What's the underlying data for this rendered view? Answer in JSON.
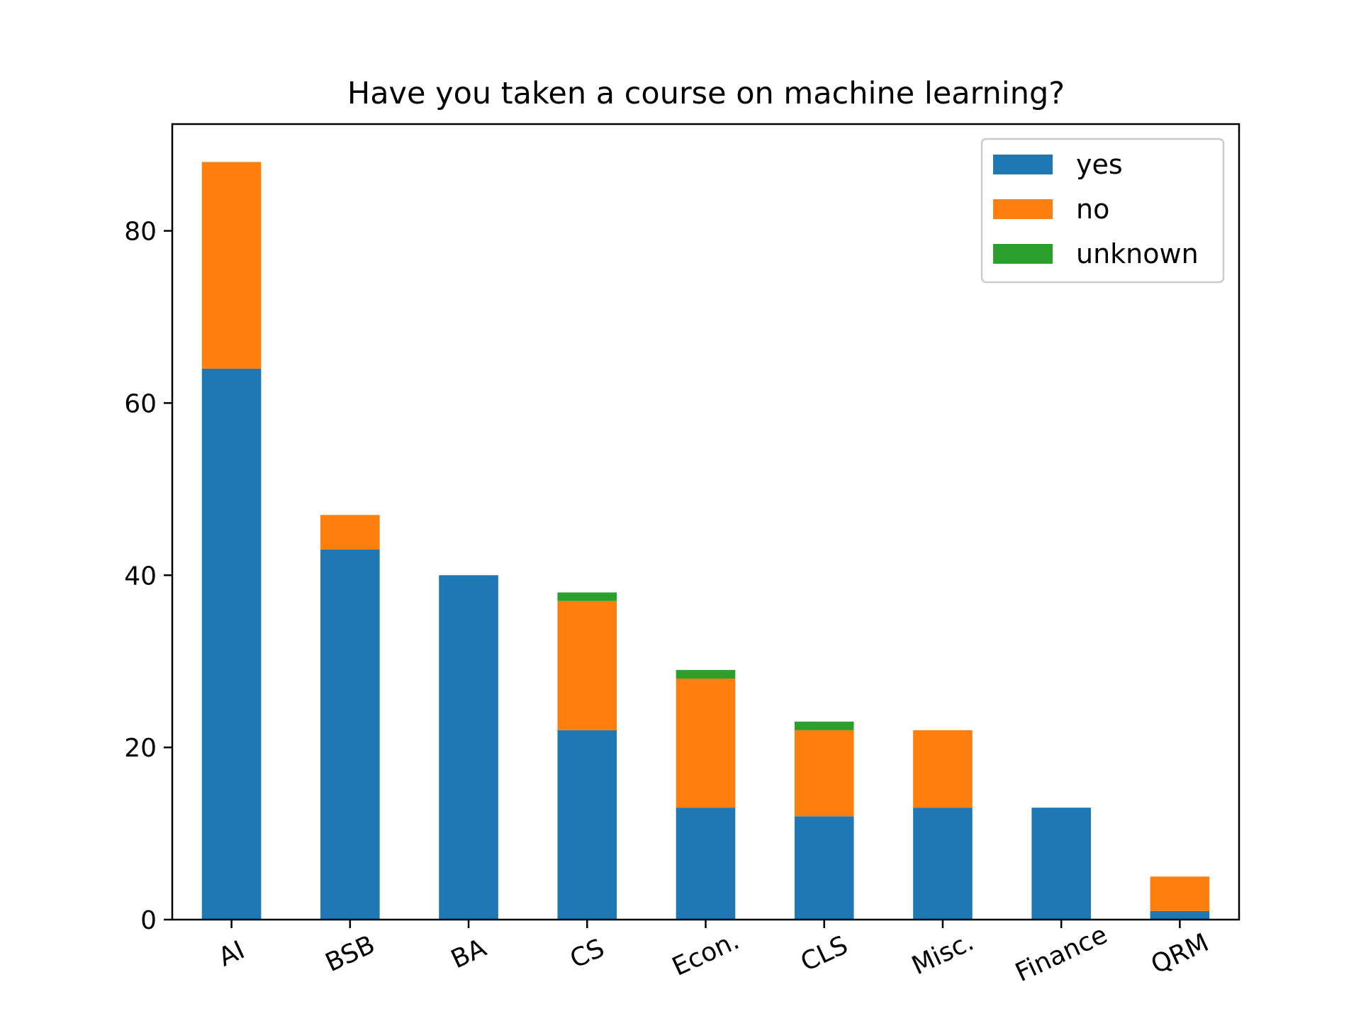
{
  "chart_data": {
    "type": "bar",
    "stacked": true,
    "title": "Have you taken a course on machine learning?",
    "xlabel": "",
    "ylabel": "",
    "categories": [
      "AI",
      "BSB",
      "BA",
      "CS",
      "Econ.",
      "CLS",
      "Misc.",
      "Finance",
      "QRM"
    ],
    "series": [
      {
        "name": "yes",
        "color": "#1f77b4",
        "values": [
          64,
          43,
          40,
          22,
          13,
          12,
          13,
          13,
          1
        ]
      },
      {
        "name": "no",
        "color": "#ff7f0e",
        "values": [
          24,
          4,
          0,
          15,
          15,
          10,
          9,
          0,
          4
        ]
      },
      {
        "name": "unknown",
        "color": "#2ca02c",
        "values": [
          0,
          0,
          0,
          1,
          1,
          1,
          0,
          0,
          0
        ]
      }
    ],
    "ylim": [
      0,
      92.4
    ],
    "yticks": [
      0,
      20,
      40,
      60,
      80
    ],
    "xtick_rotation": -25,
    "legend_position": "top-right",
    "grid": false
  }
}
